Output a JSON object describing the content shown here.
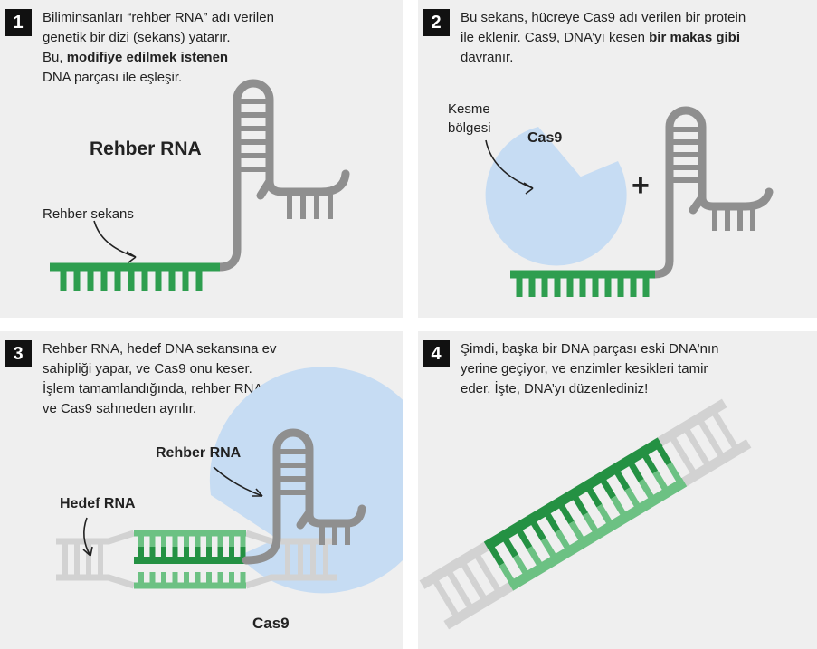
{
  "colors": {
    "panel_bg": "#efefef",
    "badge": "#111111",
    "guide_green": "#2e9e4f",
    "dark_green": "#249143",
    "light_green": "#6cc183",
    "rna_gray": "#8f8f8f",
    "dna_gray": "#d2d2d2",
    "cas9_blue": "#c6dcf3"
  },
  "panels": [
    {
      "number": "1",
      "lines": [
        [
          "Biliminsanları “rehber RNA” adı verilen"
        ],
        [
          "genetik bir dizi (sekans) yatarır."
        ],
        [
          "Bu, ",
          {
            "bold": "modifiye edilmek istenen"
          }
        ],
        [
          "DNA parçası ile eşleşir."
        ]
      ],
      "labels": {
        "title": "Rehber RNA",
        "sequence": "Rehber sekans"
      }
    },
    {
      "number": "2",
      "lines": [
        [
          "Bu sekans, hücreye Cas9 adı verilen bir protein"
        ],
        [
          "ile eklenir. Cas9, DNA’yı kesen ",
          {
            "bold": "bir makas gibi"
          }
        ],
        [
          "davranır."
        ]
      ],
      "labels": {
        "cut_line1": "Kesme",
        "cut_line2": "bölgesi",
        "cas9": "Cas9",
        "plus": "+"
      }
    },
    {
      "number": "3",
      "lines": [
        [
          "Rehber RNA, hedef DNA sekansına ev"
        ],
        [
          "sahipliği yapar, ve Cas9 onu keser."
        ],
        [
          "İşlem tamamlandığında, rehber RNA"
        ],
        [
          "ve Cas9 sahneden ayrılır."
        ]
      ],
      "labels": {
        "guide": "Rehber RNA",
        "target": "Hedef RNA",
        "cas9": "Cas9"
      }
    },
    {
      "number": "4",
      "lines": [
        [
          "Şimdi, başka bir DNA parçası eski DNA'nın"
        ],
        [
          "yerine geçiyor, ve enzimler kesikleri tamir"
        ],
        [
          "eder. İşte, DNA’yı düzenlediniz!"
        ]
      ],
      "labels": {}
    }
  ]
}
